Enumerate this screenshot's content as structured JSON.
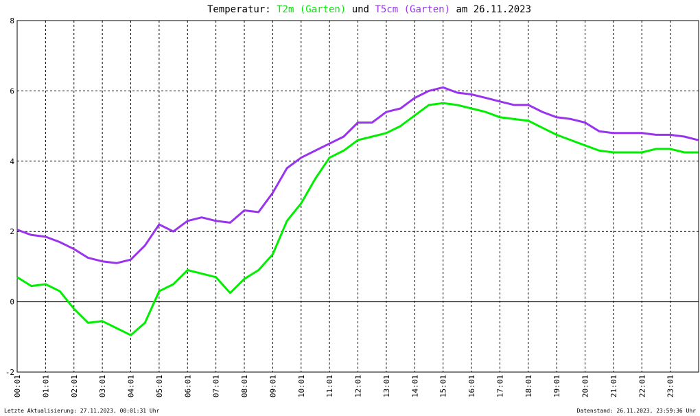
{
  "chart_data": {
    "type": "line",
    "title_prefix": "Temperatur:",
    "title_mid": "und",
    "title_suffix": "am 26.11.2023",
    "footer_left": "Letzte Aktualisierung: 27.11.2023, 00:01:31 Uhr",
    "footer_right": "Datenstand: 26.11.2023, 23:59:36 Uhr",
    "x": [
      1,
      31,
      61,
      91,
      121,
      151,
      181,
      211,
      241,
      271,
      301,
      331,
      361,
      391,
      421,
      451,
      481,
      511,
      541,
      571,
      601,
      631,
      661,
      691,
      721,
      751,
      781,
      811,
      841,
      871,
      901,
      931,
      961,
      991,
      1021,
      1051,
      1081,
      1111,
      1141,
      1171,
      1201,
      1231,
      1261,
      1291,
      1321,
      1351,
      1381,
      1411,
      1440
    ],
    "series": [
      {
        "name": "T2m (Garten)",
        "color": "#00ee00",
        "values": [
          0.7,
          0.45,
          0.5,
          0.3,
          -0.2,
          -0.6,
          -0.55,
          -0.75,
          -0.95,
          -0.6,
          0.3,
          0.5,
          0.9,
          0.8,
          0.7,
          0.25,
          0.65,
          0.9,
          1.35,
          2.3,
          2.8,
          3.5,
          4.1,
          4.3,
          4.6,
          4.7,
          4.8,
          5.0,
          5.3,
          5.6,
          5.65,
          5.6,
          5.5,
          5.4,
          5.25,
          5.2,
          5.15,
          4.95,
          4.75,
          4.6,
          4.45,
          4.3,
          4.25,
          4.25,
          4.25,
          4.35,
          4.35,
          4.25,
          4.25
        ]
      },
      {
        "name": "T5cm (Garten)",
        "color": "#9933ee",
        "values": [
          2.05,
          1.9,
          1.85,
          1.7,
          1.5,
          1.25,
          1.15,
          1.1,
          1.2,
          1.6,
          2.2,
          2.0,
          2.3,
          2.4,
          2.3,
          2.25,
          2.6,
          2.55,
          3.1,
          3.8,
          4.1,
          4.3,
          4.5,
          4.7,
          5.1,
          5.1,
          5.4,
          5.5,
          5.8,
          6.0,
          6.1,
          5.95,
          5.9,
          5.8,
          5.7,
          5.6,
          5.6,
          5.4,
          5.25,
          5.2,
          5.1,
          4.85,
          4.8,
          4.8,
          4.8,
          4.75,
          4.75,
          4.7,
          4.6
        ]
      }
    ],
    "xlim": [
      1,
      1441
    ],
    "xticks": [
      {
        "value": 1,
        "label": "00:01"
      },
      {
        "value": 61,
        "label": "01:01"
      },
      {
        "value": 121,
        "label": "02:01"
      },
      {
        "value": 181,
        "label": "03:01"
      },
      {
        "value": 241,
        "label": "04:01"
      },
      {
        "value": 301,
        "label": "05:01"
      },
      {
        "value": 361,
        "label": "06:01"
      },
      {
        "value": 421,
        "label": "07:01"
      },
      {
        "value": 481,
        "label": "08:01"
      },
      {
        "value": 541,
        "label": "09:01"
      },
      {
        "value": 601,
        "label": "10:01"
      },
      {
        "value": 661,
        "label": "11:01"
      },
      {
        "value": 721,
        "label": "12:01"
      },
      {
        "value": 781,
        "label": "13:01"
      },
      {
        "value": 841,
        "label": "14:01"
      },
      {
        "value": 901,
        "label": "15:01"
      },
      {
        "value": 961,
        "label": "16:01"
      },
      {
        "value": 1021,
        "label": "17:01"
      },
      {
        "value": 1081,
        "label": "18:01"
      },
      {
        "value": 1141,
        "label": "19:01"
      },
      {
        "value": 1201,
        "label": "20:01"
      },
      {
        "value": 1261,
        "label": "21:01"
      },
      {
        "value": 1321,
        "label": "22:01"
      },
      {
        "value": 1381,
        "label": "23:01"
      }
    ],
    "ylim": [
      -2,
      8
    ],
    "yticks": [
      -2,
      0,
      2,
      4,
      6,
      8
    ],
    "grid": true
  }
}
